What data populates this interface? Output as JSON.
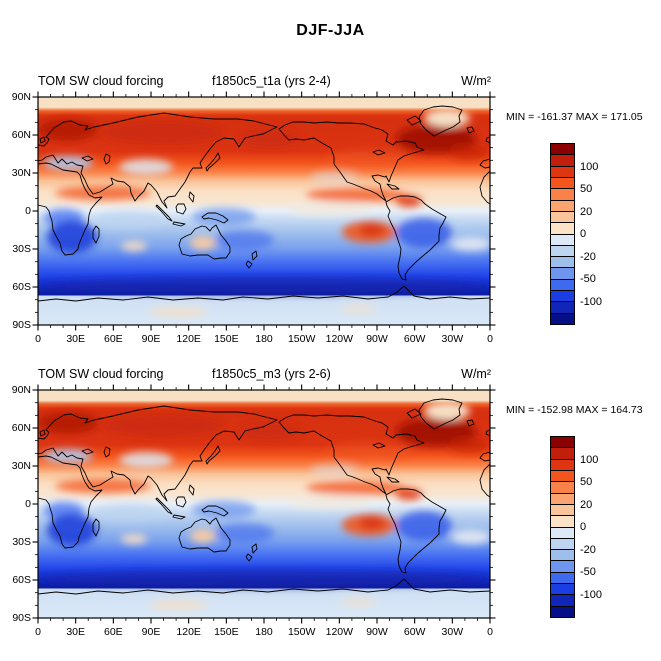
{
  "main_title": "DJF-JJA",
  "panels": [
    {
      "variable": "TOM SW cloud forcing",
      "experiment": "f1850c5_t1a (yrs 2-4)",
      "units": "W/m²",
      "stats": "MIN = -161.37 MAX = 171.05"
    },
    {
      "variable": "TOM SW cloud forcing",
      "experiment": "f1850c5_m3 (yrs 2-6)",
      "units": "W/m²",
      "stats": "MIN = -152.98 MAX = 164.73"
    }
  ],
  "axes": {
    "x_labels": [
      "0",
      "30E",
      "60E",
      "90E",
      "120E",
      "150E",
      "180",
      "150W",
      "120W",
      "90W",
      "60W",
      "30W",
      "0"
    ],
    "y_labels": [
      "90N",
      "60N",
      "30N",
      "0",
      "30S",
      "60S",
      "90S"
    ]
  },
  "colorbar": {
    "labels": [
      "100",
      "50",
      "20",
      "0",
      "-20",
      "-50",
      "-100"
    ],
    "colors": [
      "#8B0000",
      "#C21E0C",
      "#DF3510",
      "#F4551C",
      "#FA8248",
      "#FBA470",
      "#F9C49A",
      "#FCE3C8",
      "#DCE9F7",
      "#BDD5F1",
      "#9EBEEC",
      "#6E96EF",
      "#3E6AF0",
      "#1B3EE4",
      "#1126B8",
      "#050F87"
    ]
  },
  "chart_data": [
    {
      "type": "heatmap",
      "title": "TOM SW cloud forcing  f1850c5_t1a (yrs 2-4)",
      "subtitle": "DJF-JJA",
      "units": "W/m²",
      "min": -161.37,
      "max": 171.05,
      "x_ticks": [
        "0",
        "30E",
        "60E",
        "90E",
        "120E",
        "150E",
        "180",
        "150W",
        "120W",
        "90W",
        "60W",
        "30W",
        "0"
      ],
      "y_ticks": [
        "90N",
        "60N",
        "30N",
        "0",
        "30S",
        "60S",
        "90S"
      ],
      "x_range_deg": [
        0,
        360
      ],
      "y_range_deg": [
        -90,
        90
      ],
      "colorbar_labeled_levels": [
        100,
        50,
        20,
        0,
        -20,
        -50,
        -100
      ],
      "pattern": "positive (red) values across NH mid/high latitudes, strongest over Eurasia, N Pacific and N Atlantic south of Greenland; negative (blue) across SH with deep minimum band 40S-65S, dark blue over southern Africa and Brazil; warm anomaly patch in SE Pacific off Chile; pale band over Arctic 80-90N and Antarctica"
    },
    {
      "type": "heatmap",
      "title": "TOM SW cloud forcing  f1850c5_m3 (yrs 2-6)",
      "subtitle": "DJF-JJA",
      "units": "W/m²",
      "min": -152.98,
      "max": 164.73,
      "x_ticks": [
        "0",
        "30E",
        "60E",
        "90E",
        "120E",
        "150E",
        "180",
        "150W",
        "120W",
        "90W",
        "60W",
        "30W",
        "0"
      ],
      "y_ticks": [
        "90N",
        "60N",
        "30N",
        "0",
        "30S",
        "60S",
        "90S"
      ],
      "x_range_deg": [
        0,
        360
      ],
      "y_range_deg": [
        -90,
        90
      ],
      "colorbar_labeled_levels": [
        100,
        50,
        20,
        0,
        -20,
        -50,
        -100
      ],
      "pattern": "same spatial structure as panel 1 with slightly weaker extremes"
    }
  ]
}
